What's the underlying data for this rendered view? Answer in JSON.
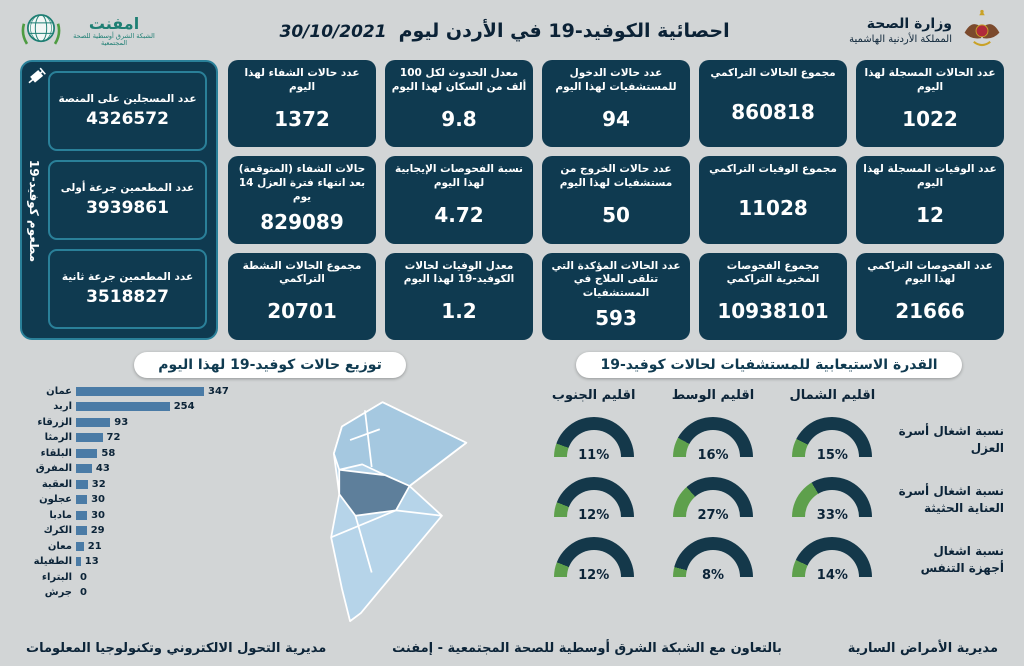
{
  "header": {
    "ministry_name": "وزارة الصحة",
    "ministry_subtitle": "المملكة الأردنية الهاشمية",
    "title": "احصائية الكوفيد-19 في الأردن ليوم",
    "date": "30/10/2021",
    "network_name": "امفنت",
    "network_subtitle": "الشبكة الشرق أوسطية للصحة المجتمعية"
  },
  "stats": [
    {
      "label": "عدد الحالات المسجلة لهذا اليوم",
      "value": "1022"
    },
    {
      "label": "مجموع الحالات التراكمي",
      "value": "860818"
    },
    {
      "label": "عدد حالات الدخول للمستشفيات لهذا اليوم",
      "value": "94"
    },
    {
      "label": "معدل الحدوث لكل 100 ألف من السكان لهذا اليوم",
      "value": "9.8"
    },
    {
      "label": "عدد حالات الشفاء لهذا اليوم",
      "value": "1372"
    },
    {
      "label": "عدد الوفيات المسجلة لهذا اليوم",
      "value": "12"
    },
    {
      "label": "مجموع الوفيات التراكمي",
      "value": "11028"
    },
    {
      "label": "عدد حالات الخروج من مستشفيات لهذا اليوم",
      "value": "50"
    },
    {
      "label": "نسبة الفحوصات الإيجابية لهذا اليوم",
      "value": "4.72"
    },
    {
      "label": "حالات الشفاء (المتوقعة) بعد انتهاء فترة العزل 14 يوم",
      "value": "829089"
    },
    {
      "label": "عدد الفحوصات التراكمي لهذا اليوم",
      "value": "21666"
    },
    {
      "label": "مجموع الفحوصات المخبرية التراكمي",
      "value": "10938101"
    },
    {
      "label": "عدد الحالات المؤكدة التي تتلقى العلاج في المستشفيات",
      "value": "593"
    },
    {
      "label": "معدل الوفيات لحالات الكوفيد-19 لهذا اليوم",
      "value": "1.2"
    },
    {
      "label": "مجموع الحالات النشطة التراكمي",
      "value": "20701"
    }
  ],
  "vaccine_panel": {
    "side_label": "مطعوم كوفيد-19",
    "cards": [
      {
        "label": "عدد المسجلين على المنصة",
        "value": "4326572"
      },
      {
        "label": "عدد المطعمين جرعة أولى",
        "value": "3939861"
      },
      {
        "label": "عدد المطعمين جرعة ثانية",
        "value": "3518827"
      }
    ]
  },
  "chart_data": [
    {
      "type": "bar",
      "title": "توزيع حالات كوفيد-19 لهذا اليوم",
      "orientation": "horizontal",
      "categories": [
        "عمان",
        "اربد",
        "الزرقاء",
        "الرمثا",
        "البلقاء",
        "المفرق",
        "العقبة",
        "عجلون",
        "مادبا",
        "الكرك",
        "معان",
        "الطفيلة",
        "البتراء",
        "جرش"
      ],
      "values": [
        347,
        254,
        93,
        72,
        58,
        43,
        32,
        30,
        30,
        29,
        21,
        13,
        0,
        0
      ],
      "xlim": [
        0,
        360
      ],
      "bar_color": "#4a7ba6"
    },
    {
      "type": "gauge",
      "title": "القدرة الاستيعابية للمستشفيات لحالات كوفيد-19",
      "columns": [
        "اقليم الشمال",
        "اقليم الوسط",
        "اقليم الجنوب"
      ],
      "rows": [
        {
          "label": "نسبة اشغال أسرة العزل",
          "values_pct": [
            15,
            16,
            11
          ]
        },
        {
          "label": "نسبة اشغال أسرة العناية الحثيثة",
          "values_pct": [
            33,
            27,
            12
          ]
        },
        {
          "label": "نسبة اشغال أجهزة التنفس",
          "values_pct": [
            14,
            8,
            12
          ]
        }
      ],
      "fill_color": "#5ea04c",
      "track_color": "#14384a"
    }
  ],
  "footer": {
    "right": "مديرية الأمراض السارية",
    "center": "بالتعاون مع الشبكة الشرق أوسطية للصحة المجتمعية - إمفنت",
    "left": "مديرية التحول الالكتروني وتكنولوجيا المعلومات"
  },
  "colors": {
    "page_bg": "#d2d5d6",
    "card_bg": "#0f3a50",
    "accent_teal": "#2a8099",
    "gauge_green": "#5ea04c",
    "bar_blue": "#4a7ba6",
    "map_light": "#b6d4e9",
    "map_dark": "#5e7f9b"
  }
}
